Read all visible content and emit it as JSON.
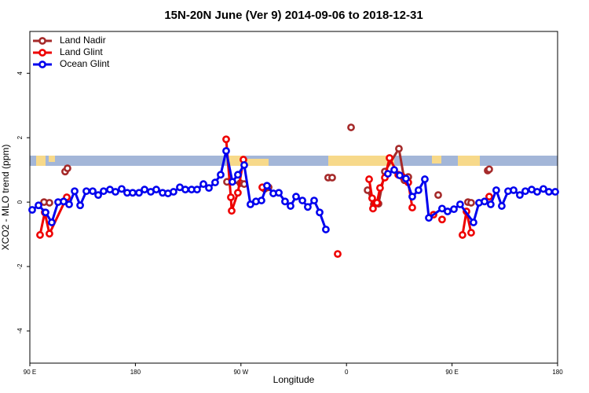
{
  "chart_data": {
    "type": "line",
    "title": "15N-20N June (Ver 9)   2014-09-06 to 2018-12-31",
    "xlabel": "Longitude",
    "ylabel": "XCO2 - MLO trend (ppm)",
    "xlim": [
      90,
      540
    ],
    "ylim": [
      -5,
      5.3
    ],
    "xticks": [
      {
        "value": 90,
        "label": "90 E"
      },
      180,
      {
        "value": 270,
        "label": "90 W"
      },
      {
        "value": 360,
        "label": "0"
      },
      {
        "value": 450,
        "label": "90 E"
      },
      {
        "value": 540,
        "label": "180"
      }
    ],
    "yticks": [
      -4,
      -2,
      0,
      2,
      4
    ],
    "legend": "top-left",
    "grid": false,
    "series": [
      {
        "name": "Land Nadir",
        "color": "#a52a2a",
        "x": [
          102.1,
          106.7,
          null,
          120.1,
          122.1,
          null,
          258.1,
          269.5,
          272.8,
          null,
          290.2,
          293.6,
          null,
          344.4,
          347.8,
          null,
          363.9,
          null,
          378,
          383.3,
          387.3,
          392.7,
          404.7,
          409.4,
          412.7,
          null,
          438.2,
          null,
          463.6,
          466.3,
          null,
          480.4,
          481.7
        ],
        "values": [
          0,
          -0.02,
          null,
          0.95,
          1.05,
          null,
          0.63,
          0.59,
          0.56,
          null,
          0.41,
          0.46,
          null,
          0.76,
          0.76,
          null,
          2.32,
          null,
          0.37,
          -0.07,
          -0.05,
          0.95,
          1.66,
          0.68,
          0.78,
          null,
          0.22,
          null,
          0,
          -0.02,
          null,
          0.98,
          1.02
        ]
      },
      {
        "name": "Land Glint",
        "color": "#ee0000",
        "x": [
          98.7,
          102.7,
          106.7,
          121.5,
          null,
          257.4,
          261.4,
          262.1,
          267.4,
          272.1,
          null,
          288.2,
          null,
          352.5,
          null,
          379.3,
          381.9,
          382.6,
          386,
          388.6,
          392.7,
          396.7,
          404.1,
          407.4,
          412.7,
          416.1,
          null,
          434.2,
          null,
          441.5,
          null,
          458.9,
          462.3,
          466.3,
          null,
          481.7
        ],
        "values": [
          -1.02,
          -0.32,
          -0.98,
          0.15,
          null,
          1.95,
          0.15,
          -0.27,
          0.29,
          1.32,
          null,
          0.46,
          null,
          -1.61,
          null,
          0.71,
          0.12,
          -0.2,
          -0.02,
          0.44,
          0.76,
          1.37,
          0.85,
          0.8,
          0.61,
          -0.17,
          null,
          -0.39,
          null,
          -0.54,
          null,
          -1.02,
          -0.29,
          -0.95,
          null,
          0.17
        ]
      },
      {
        "name": "Ocean Glint",
        "color": "#0000ee",
        "x": [
          92,
          97.4,
          103.4,
          108.7,
          114.1,
          118.8,
          123.5,
          128.2,
          132.9,
          138.2,
          143.6,
          148.3,
          152.9,
          158.3,
          163,
          168.3,
          173,
          177.7,
          183.1,
          187.8,
          193.1,
          197.8,
          203.2,
          207.8,
          212.5,
          217.9,
          222.6,
          227.9,
          232.6,
          238,
          242.7,
          248,
          252.7,
          257.4,
          262.7,
          267.4,
          272.8,
          278.1,
          282.8,
          287.5,
          292.2,
          297.6,
          302.3,
          307.6,
          312.3,
          317,
          322.4,
          327,
          332.4,
          337.1,
          342.4,
          null,
          395.3,
          400.7,
          405.4,
          410.7,
          416.1,
          421.4,
          426.8,
          430.2,
          441.5,
          446.2,
          451.6,
          456.9,
          468.3,
          473,
          477.7,
          483,
          487.7,
          492.4,
          497.8,
          502.5,
          507.8,
          512.5,
          517.9,
          522.6,
          527.9,
          532.6,
          538
        ],
        "values": [
          -0.24,
          -0.1,
          -0.32,
          -0.63,
          0,
          0.02,
          -0.07,
          0.34,
          -0.1,
          0.34,
          0.34,
          0.22,
          0.34,
          0.39,
          0.32,
          0.41,
          0.29,
          0.29,
          0.29,
          0.39,
          0.32,
          0.39,
          0.29,
          0.27,
          0.32,
          0.46,
          0.39,
          0.39,
          0.39,
          0.56,
          0.44,
          0.61,
          0.85,
          1.59,
          0.63,
          0.85,
          1.15,
          -0.07,
          0.02,
          0.05,
          0.51,
          0.27,
          0.29,
          0.02,
          -0.12,
          0.17,
          0.05,
          -0.15,
          0.05,
          -0.32,
          -0.85,
          null,
          0.88,
          1.0,
          0.83,
          0.73,
          0.17,
          0.37,
          0.71,
          -0.49,
          -0.2,
          -0.29,
          -0.22,
          -0.07,
          -0.63,
          -0.02,
          0.02,
          -0.07,
          0.37,
          -0.12,
          0.34,
          0.37,
          0.22,
          0.34,
          0.39,
          0.32,
          0.41,
          0.32,
          0.32
        ]
      }
    ]
  }
}
